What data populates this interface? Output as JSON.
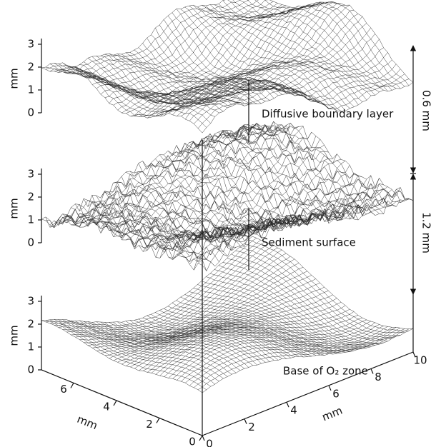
{
  "chart_data": {
    "type": "surface3d",
    "xlabel": "mm",
    "ylabel": "mm",
    "xlim": [
      0,
      10
    ],
    "xticks": [
      0,
      2,
      4,
      6,
      8,
      10
    ],
    "ylim": [
      0,
      7.5
    ],
    "yticks": [
      0,
      2,
      4,
      6
    ],
    "panels": [
      {
        "label": "Diffusive boundary layer",
        "zlabel": "mm",
        "zlim": [
          0,
          3
        ],
        "zticks": [
          0,
          1,
          2,
          3
        ]
      },
      {
        "label": "Sediment surface",
        "zlabel": "mm",
        "zlim": [
          0,
          3
        ],
        "zticks": [
          0,
          1,
          2,
          3
        ]
      },
      {
        "label": "Base of O₂ zone",
        "zlabel": "mm",
        "zlim": [
          0,
          3
        ],
        "zticks": [
          0,
          1,
          2,
          3
        ]
      }
    ],
    "annotations": [
      {
        "text": "0.6 mm"
      },
      {
        "text": "1.2 mm"
      }
    ]
  }
}
